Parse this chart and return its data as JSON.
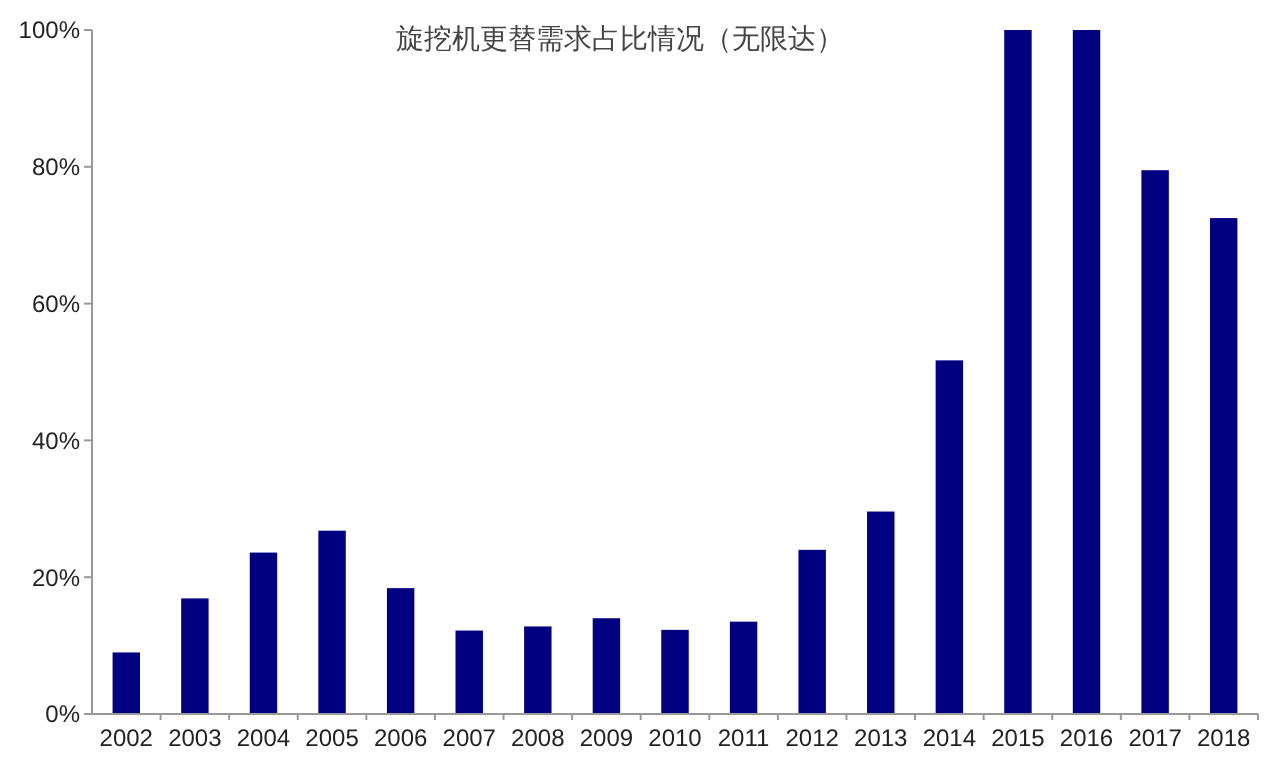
{
  "chart_data": {
    "type": "bar",
    "title": "旋挖机更替需求占比情况（无限达）",
    "categories": [
      "2002",
      "2003",
      "2004",
      "2005",
      "2006",
      "2007",
      "2008",
      "2009",
      "2010",
      "2011",
      "2012",
      "2013",
      "2014",
      "2015",
      "2016",
      "2017",
      "2018"
    ],
    "values": [
      9,
      16.9,
      23.6,
      26.8,
      18.4,
      12.2,
      12.8,
      14,
      12.3,
      13.5,
      24,
      29.6,
      51.7,
      100,
      100,
      79.5,
      72.5
    ],
    "color": "#000080",
    "ylim": [
      0,
      100
    ],
    "yticks": [
      {
        "value": 0,
        "label": "0%"
      },
      {
        "value": 20,
        "label": "20%"
      },
      {
        "value": 40,
        "label": "40%"
      },
      {
        "value": 60,
        "label": "60%"
      },
      {
        "value": 80,
        "label": "80%"
      },
      {
        "value": 100,
        "label": "100%"
      }
    ],
    "grid": false
  }
}
